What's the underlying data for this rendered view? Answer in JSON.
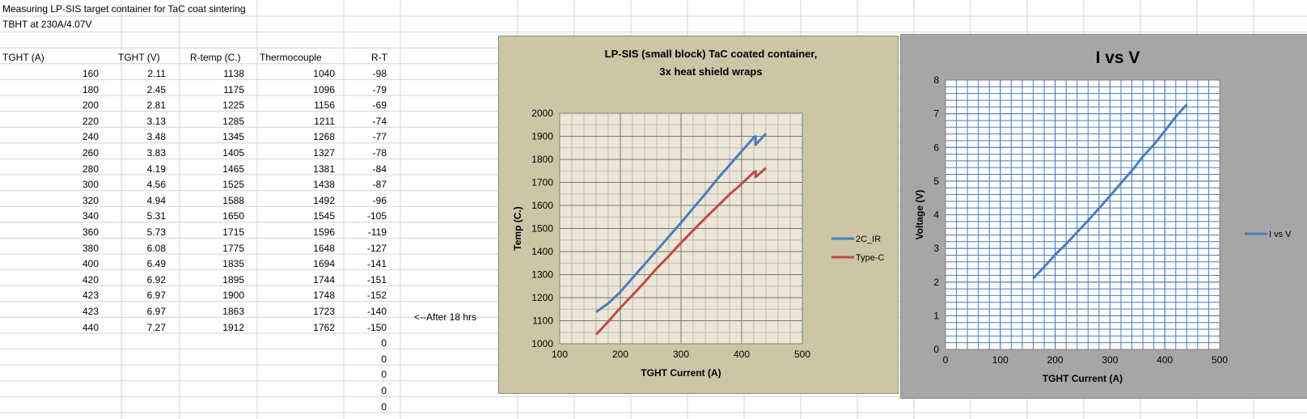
{
  "sheet": {
    "title": "Measuring LP-SIS target container for TaC coat sintering",
    "subtitle": "TBHT at 230A/4.07V",
    "headers": [
      "TGHT (A)",
      "TGHT (V)",
      "R-temp (C.)",
      "Thermocouple",
      "R-T"
    ],
    "rows": [
      [
        160,
        2.11,
        1138,
        1040,
        -98
      ],
      [
        180,
        2.45,
        1175,
        1096,
        -79
      ],
      [
        200,
        2.81,
        1225,
        1156,
        -69
      ],
      [
        220,
        3.13,
        1285,
        1211,
        -74
      ],
      [
        240,
        3.48,
        1345,
        1268,
        -77
      ],
      [
        260,
        3.83,
        1405,
        1327,
        -78
      ],
      [
        280,
        4.19,
        1465,
        1381,
        -84
      ],
      [
        300,
        4.56,
        1525,
        1438,
        -87
      ],
      [
        320,
        4.94,
        1588,
        1492,
        -96
      ],
      [
        340,
        5.31,
        1650,
        1545,
        -105
      ],
      [
        360,
        5.73,
        1715,
        1596,
        -119
      ],
      [
        380,
        6.08,
        1775,
        1648,
        -127
      ],
      [
        400,
        6.49,
        1835,
        1694,
        -141
      ],
      [
        420,
        6.92,
        1895,
        1744,
        -151
      ],
      [
        423,
        6.97,
        1900,
        1748,
        -152
      ],
      [
        423,
        6.97,
        1863,
        1723,
        -140
      ],
      [
        440,
        7.27,
        1912,
        1762,
        -150
      ]
    ],
    "extra_rt": [
      0,
      0,
      0,
      0,
      0
    ],
    "note": "<--After 18 hrs"
  },
  "chart_data": [
    {
      "type": "line",
      "title": "LP-SIS (small block) TaC coated container, 3x heat shield wraps",
      "xlabel": "TGHT  Current (A)",
      "ylabel": "Temp (C.)",
      "xlim": [
        100,
        500
      ],
      "ylim": [
        1000,
        2000
      ],
      "xticks": [
        "100",
        "200",
        "300",
        "400",
        "500"
      ],
      "yticks": [
        "1000",
        "1100",
        "1200",
        "1300",
        "1400",
        "1500",
        "1600",
        "1700",
        "1800",
        "1900",
        "2000"
      ],
      "grid": true,
      "legend": "right",
      "x": [
        160,
        180,
        200,
        220,
        240,
        260,
        280,
        300,
        320,
        340,
        360,
        380,
        400,
        420,
        423,
        423,
        440
      ],
      "series": [
        {
          "name": "2C_IR",
          "color": "#4a7ebb",
          "values": [
            1138,
            1175,
            1225,
            1285,
            1345,
            1405,
            1465,
            1525,
            1588,
            1650,
            1715,
            1775,
            1835,
            1895,
            1900,
            1863,
            1912
          ]
        },
        {
          "name": "Type-C",
          "color": "#be4b48",
          "values": [
            1040,
            1096,
            1156,
            1211,
            1268,
            1327,
            1381,
            1438,
            1492,
            1545,
            1596,
            1648,
            1694,
            1744,
            1748,
            1723,
            1762
          ]
        }
      ]
    },
    {
      "type": "line",
      "title": "I vs V",
      "xlabel": "TGHT   Current (A)",
      "ylabel": "Voltage (V)",
      "xlim": [
        0,
        500
      ],
      "ylim": [
        0,
        8
      ],
      "xticks": [
        "0",
        "100",
        "200",
        "300",
        "400",
        "500"
      ],
      "yticks": [
        "0",
        "1",
        "2",
        "3",
        "4",
        "5",
        "6",
        "7",
        "8"
      ],
      "grid": true,
      "legend": "right",
      "x": [
        160,
        180,
        200,
        220,
        240,
        260,
        280,
        300,
        320,
        340,
        360,
        380,
        400,
        420,
        423,
        423,
        440
      ],
      "series": [
        {
          "name": "I vs V",
          "color": "#4a7ebb",
          "values": [
            2.11,
            2.45,
            2.81,
            3.13,
            3.48,
            3.83,
            4.19,
            4.56,
            4.94,
            5.31,
            5.73,
            6.08,
            6.49,
            6.92,
            6.97,
            6.97,
            7.27
          ]
        }
      ]
    }
  ]
}
